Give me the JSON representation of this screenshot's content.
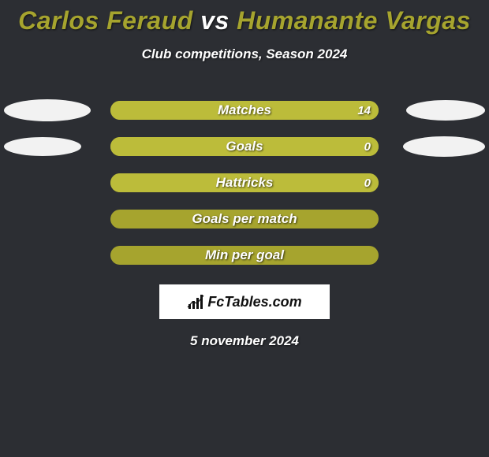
{
  "title": {
    "player1": "Carlos Feraud",
    "vs": "vs",
    "player2": "Humanante Vargas",
    "player1_color": "#a6a42e",
    "vs_color": "#ffffff",
    "player2_color": "#a6a42e"
  },
  "subtitle": "Club competitions, Season 2024",
  "colors": {
    "background": "#2c2e33",
    "bar_track": "#a6a42e",
    "bar_fill_left": "#bcbc3a",
    "bar_fill_right": "#bcbc3a",
    "oval": "#f2f2f2",
    "text": "#ffffff"
  },
  "oval_size": {
    "width": 110,
    "height": 26
  },
  "rows": [
    {
      "label": "Matches",
      "left_value": "",
      "right_value": "14",
      "fill_left_pct": 0,
      "fill_right_pct": 100,
      "show_left_oval": true,
      "show_right_oval": true,
      "left_oval_w": 110,
      "left_oval_h": 28,
      "right_oval_w": 100,
      "right_oval_h": 26
    },
    {
      "label": "Goals",
      "left_value": "",
      "right_value": "0",
      "fill_left_pct": 0,
      "fill_right_pct": 100,
      "show_left_oval": true,
      "show_right_oval": true,
      "left_oval_w": 98,
      "left_oval_h": 24,
      "right_oval_w": 104,
      "right_oval_h": 26
    },
    {
      "label": "Hattricks",
      "left_value": "",
      "right_value": "0",
      "fill_left_pct": 0,
      "fill_right_pct": 100,
      "show_left_oval": false,
      "show_right_oval": false
    },
    {
      "label": "Goals per match",
      "left_value": "",
      "right_value": "",
      "fill_left_pct": 0,
      "fill_right_pct": 0,
      "show_left_oval": false,
      "show_right_oval": false
    },
    {
      "label": "Min per goal",
      "left_value": "",
      "right_value": "",
      "fill_left_pct": 0,
      "fill_right_pct": 0,
      "show_left_oval": false,
      "show_right_oval": false
    }
  ],
  "logo": {
    "text": "FcTables.com"
  },
  "date": "5 november 2024"
}
